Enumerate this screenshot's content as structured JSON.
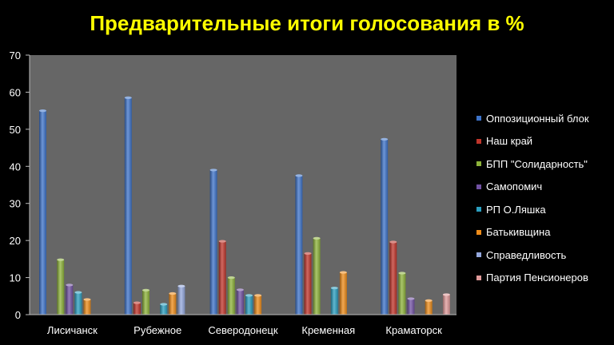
{
  "chart_data": {
    "type": "bar",
    "title": "Предварительные итоги голосования в %",
    "categories": [
      "Лисичанск",
      "Рубежное",
      "Северодонецк",
      "Кременная",
      "Краматорск"
    ],
    "ylim": [
      0,
      70
    ],
    "yticks": [
      0,
      10,
      20,
      30,
      40,
      50,
      60,
      70
    ],
    "legend_position": "right",
    "grid": false,
    "series": [
      {
        "name": "Оппозиционный блок",
        "color": "#3d73c9",
        "values": [
          55,
          58.5,
          39,
          37.5,
          47.3
        ]
      },
      {
        "name": "Наш край",
        "color": "#c0352b",
        "values": [
          null,
          3.2,
          19.8,
          16.5,
          19.6
        ]
      },
      {
        "name": "БПП \"Солидарность\"",
        "color": "#8db33a",
        "values": [
          14.8,
          6.6,
          10,
          20.6,
          11.2
        ]
      },
      {
        "name": "Самопомич",
        "color": "#7151a3",
        "values": [
          8,
          null,
          6.7,
          null,
          4.3
        ]
      },
      {
        "name": "РП О.Ляшка",
        "color": "#2b9fc0",
        "values": [
          6,
          2.8,
          5.2,
          7.2,
          null
        ]
      },
      {
        "name": "Батькивщина",
        "color": "#ee8c1a",
        "values": [
          4.1,
          5.7,
          5.2,
          11.4,
          3.8
        ]
      },
      {
        "name": "Справедливость",
        "color": "#94a8dd",
        "values": [
          null,
          7.7,
          null,
          null,
          null
        ]
      },
      {
        "name": "Партия Пенсионеров",
        "color": "#e09a9a",
        "values": [
          null,
          null,
          null,
          null,
          5.4
        ]
      }
    ]
  }
}
